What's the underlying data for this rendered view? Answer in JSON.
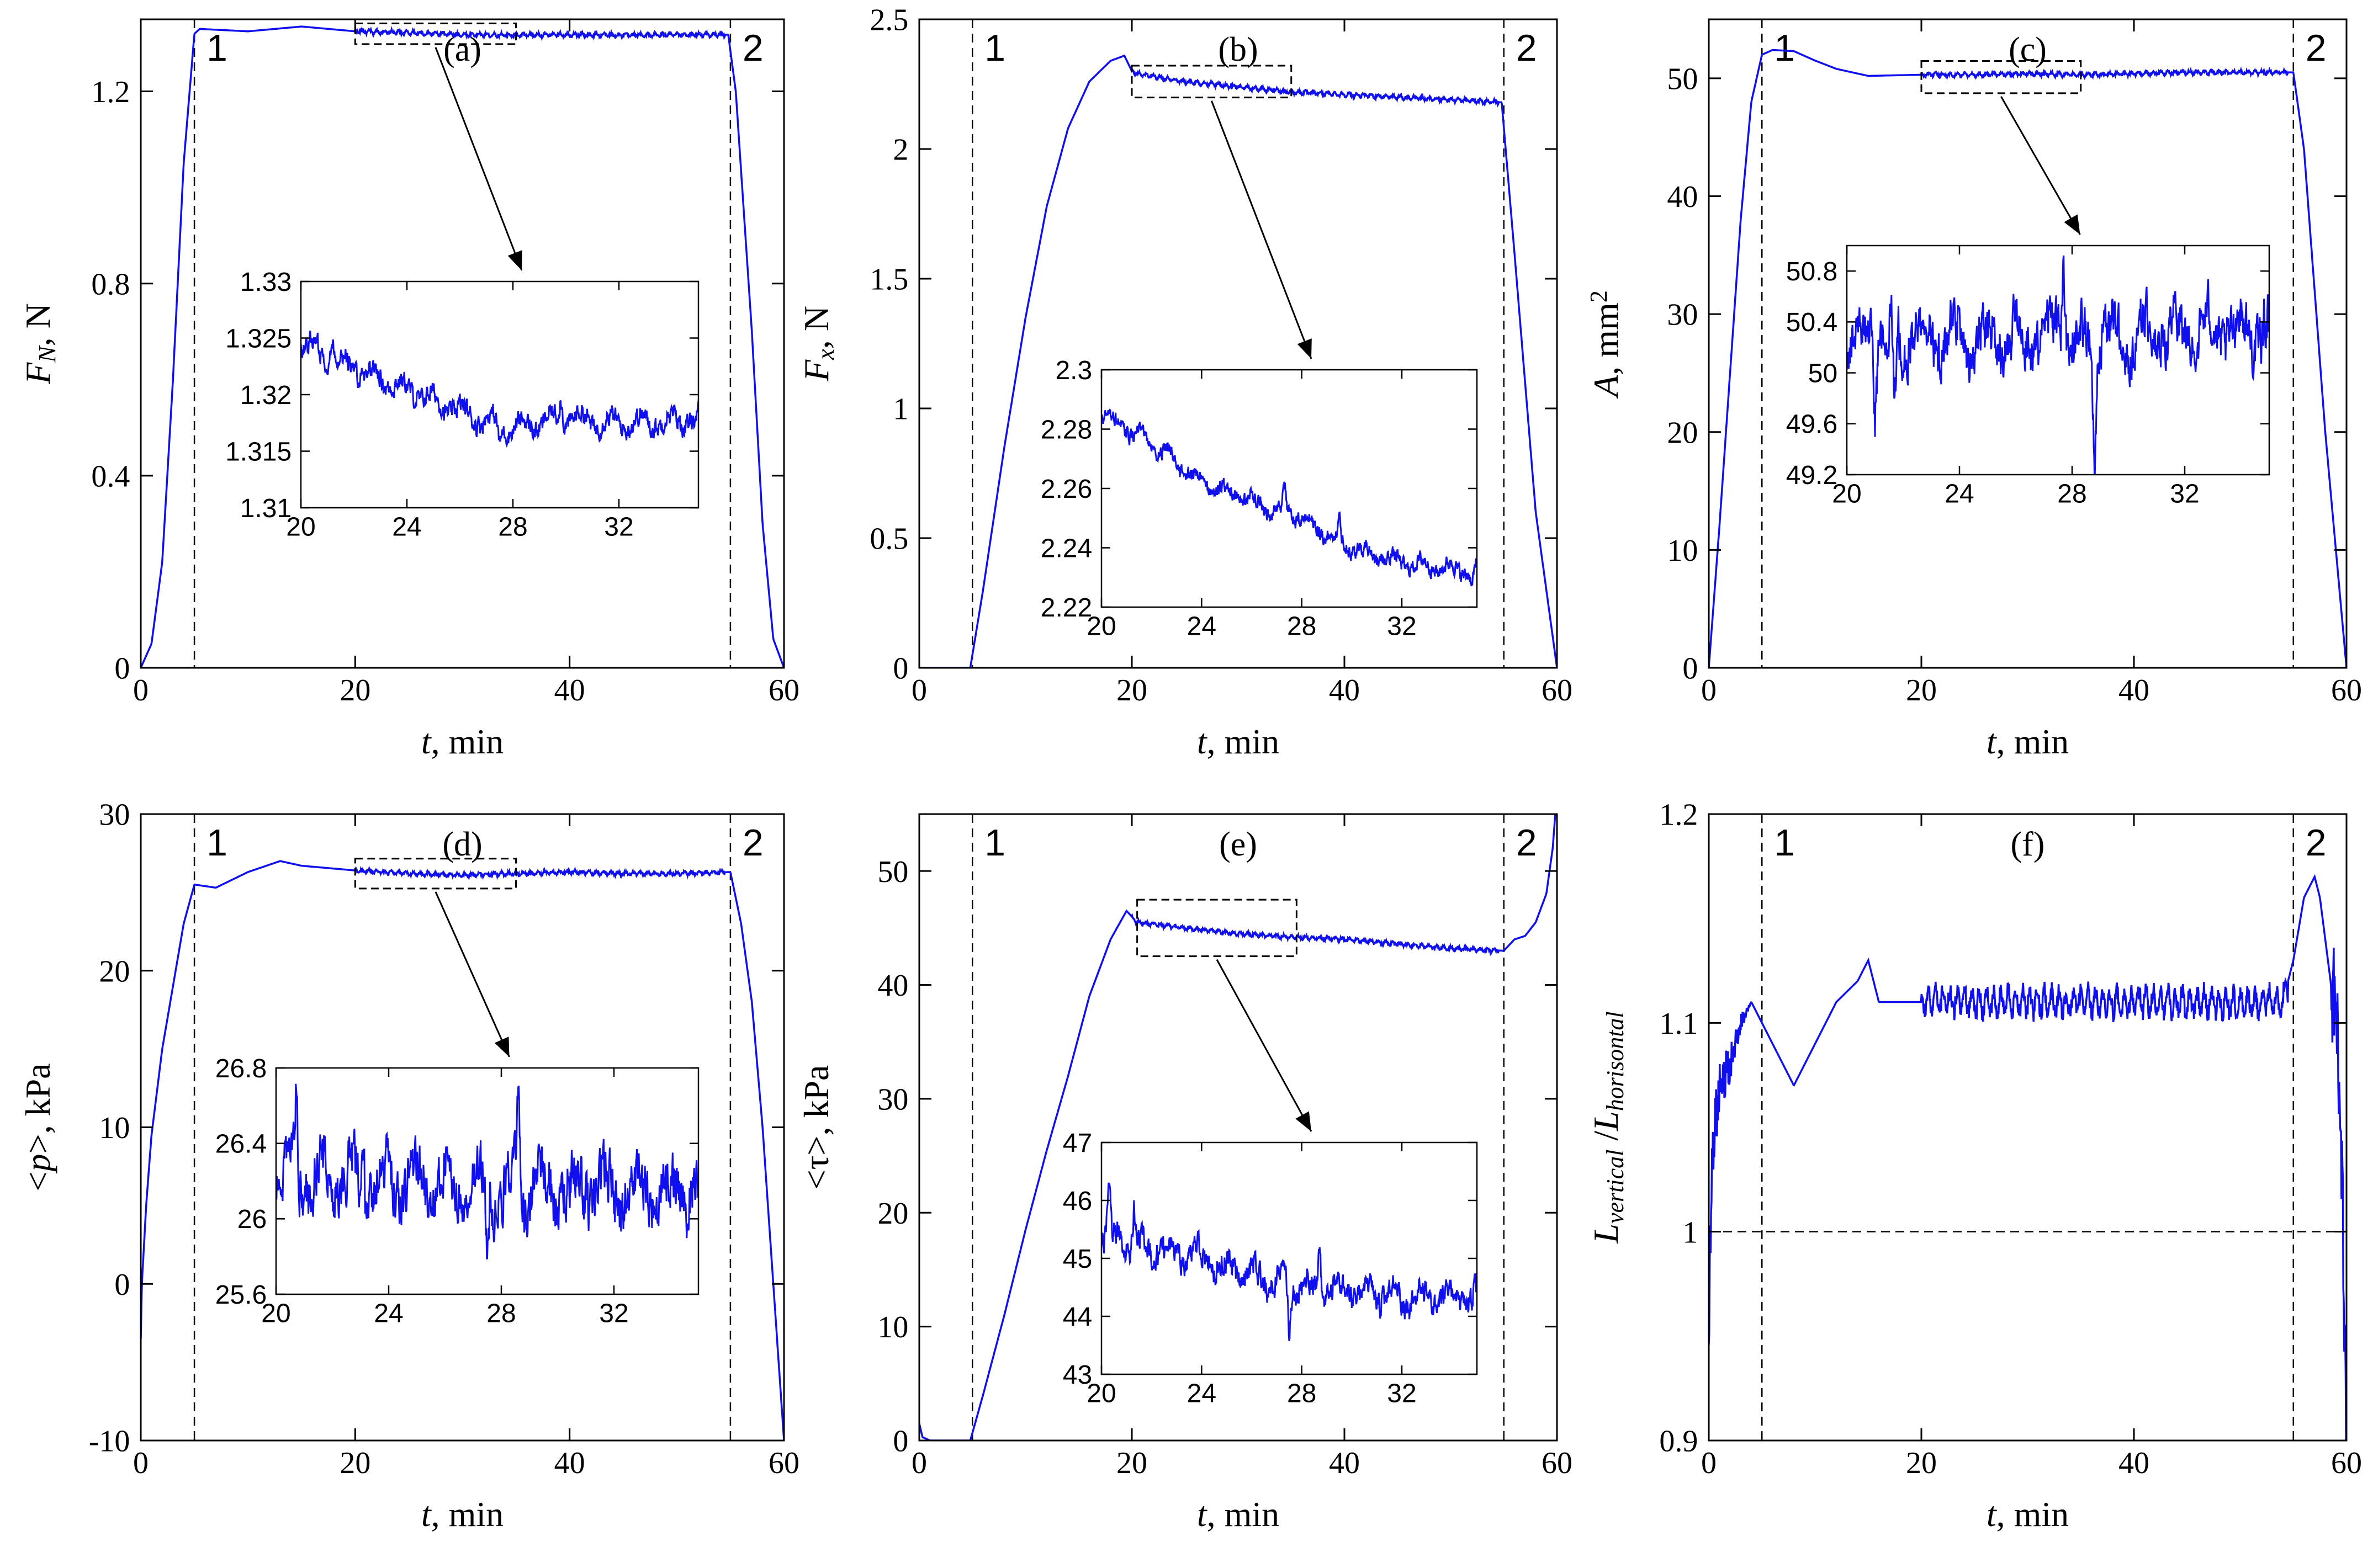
{
  "figure": {
    "line_color": "#1010ee",
    "axis_color": "#000000",
    "background": "#ffffff"
  },
  "chart_data": [
    {
      "type": "line",
      "panel_label": "(a)",
      "xlabel_var": "t",
      "xlabel_unit": ", min",
      "ylabel_parts": [
        [
          "F",
          "i"
        ],
        [
          "N",
          "sub"
        ],
        [
          ", N",
          ""
        ]
      ],
      "xlim": [
        0,
        60
      ],
      "ylim": [
        0,
        1.35
      ],
      "xticks": [
        0,
        20,
        40,
        60
      ],
      "xtick_labels": [
        "0",
        "20",
        "40",
        "60"
      ],
      "yticks": [
        0,
        0.4,
        0.8,
        1.2
      ],
      "ytick_labels": [
        "0",
        "0.4",
        "0.8",
        "1.2"
      ],
      "markers": [
        {
          "x": 5,
          "label": "1"
        },
        {
          "x": 55,
          "label": "2"
        }
      ],
      "hline": 0,
      "zoom_box": {
        "x": [
          20,
          35
        ],
        "y": [
          1.31,
          1.33
        ]
      },
      "series": [
        {
          "name": "F_N",
          "x": [
            0,
            1,
            2,
            3,
            4,
            5,
            5.5,
            10,
            15,
            20,
            25,
            30,
            35,
            40,
            45,
            50,
            54.8,
            55.5,
            57,
            58,
            59,
            60
          ],
          "y": [
            0,
            0.05,
            0.22,
            0.6,
            1.05,
            1.32,
            1.33,
            1.325,
            1.335,
            1.325,
            1.322,
            1.318,
            1.317,
            1.318,
            1.317,
            1.318,
            1.318,
            1.2,
            0.7,
            0.3,
            0.06,
            0
          ]
        }
      ],
      "inset": {
        "xlim": [
          20,
          35
        ],
        "ylim": [
          1.31,
          1.33
        ],
        "xticks": [
          20,
          24,
          28,
          32
        ],
        "xtick_labels": [
          "20",
          "24",
          "28",
          "32"
        ],
        "yticks": [
          1.31,
          1.315,
          1.32,
          1.325,
          1.33
        ],
        "ytick_labels": [
          "1.31",
          "1.315",
          "1.32",
          "1.325",
          "1.33"
        ],
        "trend": [
          [
            20,
            1.3245
          ],
          [
            22,
            1.3225
          ],
          [
            24,
            1.3205
          ],
          [
            26,
            1.3185
          ],
          [
            28,
            1.317
          ],
          [
            30,
            1.318
          ],
          [
            32,
            1.3175
          ],
          [
            35,
            1.3178
          ]
        ],
        "noise": 0.0012,
        "spikes": [
          [
            29.8,
            0.0022
          ],
          [
            27.5,
            -0.0018
          ],
          [
            21.2,
            0.0018
          ]
        ]
      }
    },
    {
      "type": "line",
      "panel_label": "(b)",
      "xlabel_var": "t",
      "xlabel_unit": ", min",
      "ylabel_parts": [
        [
          "F",
          "i"
        ],
        [
          "x",
          "sub"
        ],
        [
          ", N",
          ""
        ]
      ],
      "xlim": [
        0,
        60
      ],
      "ylim": [
        0,
        2.5
      ],
      "xticks": [
        0,
        20,
        40,
        60
      ],
      "xtick_labels": [
        "0",
        "20",
        "40",
        "60"
      ],
      "yticks": [
        0,
        0.5,
        1,
        1.5,
        2,
        2.5
      ],
      "ytick_labels": [
        "0",
        "0.5",
        "1",
        "1.5",
        "2",
        "2.5"
      ],
      "markers": [
        {
          "x": 5,
          "label": "1"
        },
        {
          "x": 55,
          "label": "2"
        }
      ],
      "zoom_box": {
        "x": [
          20,
          35
        ],
        "y": [
          2.22,
          2.3
        ]
      },
      "series": [
        {
          "name": "F_x",
          "x": [
            0,
            4.8,
            6,
            8,
            10,
            12,
            14,
            16,
            18,
            19.3,
            20,
            20.5,
            25,
            30,
            35,
            40,
            45,
            50,
            54.8,
            56,
            58,
            60
          ],
          "y": [
            0,
            0,
            0.3,
            0.85,
            1.35,
            1.78,
            2.08,
            2.26,
            2.34,
            2.36,
            2.3,
            2.29,
            2.26,
            2.24,
            2.22,
            2.21,
            2.2,
            2.19,
            2.18,
            1.6,
            0.6,
            0
          ]
        }
      ],
      "inset": {
        "xlim": [
          20,
          35
        ],
        "ylim": [
          2.22,
          2.3
        ],
        "xticks": [
          20,
          24,
          28,
          32
        ],
        "xtick_labels": [
          "20",
          "24",
          "28",
          "32"
        ],
        "yticks": [
          2.22,
          2.24,
          2.26,
          2.28,
          2.3
        ],
        "ytick_labels": [
          "2.22",
          "2.24",
          "2.26",
          "2.28",
          "2.3"
        ],
        "trend": [
          [
            20,
            2.285
          ],
          [
            22,
            2.275
          ],
          [
            24,
            2.262
          ],
          [
            26,
            2.256
          ],
          [
            28,
            2.25
          ],
          [
            30,
            2.24
          ],
          [
            32,
            2.235
          ],
          [
            35,
            2.232
          ]
        ],
        "noise": 0.0035,
        "spikes": [
          [
            27.3,
            0.01
          ],
          [
            29.5,
            0.006
          ],
          [
            34.8,
            -0.004
          ]
        ]
      }
    },
    {
      "type": "line",
      "panel_label": "(c)",
      "xlabel_var": "t",
      "xlabel_unit": ", min",
      "ylabel_parts": [
        [
          "A",
          "i"
        ],
        [
          ", mm",
          ""
        ],
        [
          "2",
          "sup"
        ]
      ],
      "xlim": [
        0,
        60
      ],
      "ylim": [
        0,
        55
      ],
      "xticks": [
        0,
        20,
        40,
        60
      ],
      "xtick_labels": [
        "0",
        "20",
        "40",
        "60"
      ],
      "yticks": [
        0,
        10,
        20,
        30,
        40,
        50
      ],
      "ytick_labels": [
        "0",
        "10",
        "20",
        "30",
        "40",
        "50"
      ],
      "markers": [
        {
          "x": 5,
          "label": "1"
        },
        {
          "x": 55,
          "label": "2"
        }
      ],
      "zoom_box": {
        "x": [
          20,
          35
        ],
        "y": [
          49.2,
          51
        ]
      },
      "series": [
        {
          "name": "A",
          "x": [
            0,
            1,
            2,
            3,
            4,
            5,
            6,
            8,
            10,
            12,
            15,
            20,
            25,
            30,
            35,
            40,
            45,
            50,
            55,
            56,
            58,
            60
          ],
          "y": [
            0,
            12,
            25,
            38,
            48,
            52,
            52.4,
            52.3,
            51.5,
            50.8,
            50.2,
            50.3,
            50.3,
            50.4,
            50.3,
            50.4,
            50.5,
            50.5,
            50.5,
            44,
            20,
            0
          ]
        }
      ],
      "inset": {
        "xlim": [
          20,
          35
        ],
        "ylim": [
          49.2,
          51
        ],
        "xticks": [
          20,
          24,
          28,
          32
        ],
        "xtick_labels": [
          "20",
          "24",
          "28",
          "32"
        ],
        "yticks": [
          49.2,
          49.6,
          50,
          50.4,
          50.8
        ],
        "ytick_labels": [
          "49.2",
          "49.6",
          "50",
          "50.4",
          "50.8"
        ],
        "trend": [
          [
            20,
            50.3
          ],
          [
            25,
            50.25
          ],
          [
            30,
            50.3
          ],
          [
            35,
            50.35
          ]
        ],
        "noise": 0.28,
        "spikes": [
          [
            21.7,
            -0.8
          ],
          [
            27.7,
            0.6
          ],
          [
            28.8,
            -0.8
          ],
          [
            21.0,
            -0.5
          ]
        ]
      }
    },
    {
      "type": "line",
      "panel_label": "(d)",
      "xlabel_var": "t",
      "xlabel_unit": ", min",
      "ylabel_parts": [
        [
          "<",
          ""
        ],
        [
          "p",
          "i"
        ],
        [
          ">, kPa",
          ""
        ]
      ],
      "xlim": [
        0,
        60
      ],
      "ylim": [
        -10,
        30
      ],
      "xticks": [
        0,
        20,
        40,
        60
      ],
      "xtick_labels": [
        "0",
        "20",
        "40",
        "60"
      ],
      "yticks": [
        -10,
        0,
        10,
        20,
        30
      ],
      "ytick_labels": [
        "-10",
        "0",
        "10",
        "20",
        "30"
      ],
      "markers": [
        {
          "x": 5,
          "label": "1"
        },
        {
          "x": 55,
          "label": "2"
        }
      ],
      "zoom_box": {
        "x": [
          20,
          35
        ],
        "y": [
          25.6,
          26.8
        ]
      },
      "series": [
        {
          "name": "p",
          "x": [
            0,
            0.1,
            0.5,
            1,
            2,
            3,
            4,
            5,
            7,
            10,
            13,
            15,
            20,
            25,
            30,
            35,
            40,
            45,
            50,
            55,
            56,
            57,
            58,
            59,
            59.5,
            60
          ],
          "y": [
            -3.5,
            0,
            5,
            9.5,
            15,
            19,
            23,
            25.5,
            25.3,
            26.3,
            27,
            26.7,
            26.4,
            26.2,
            26.1,
            26.2,
            26.3,
            26.2,
            26.2,
            26.3,
            23,
            18,
            10,
            0,
            -5,
            -10
          ]
        }
      ],
      "inset": {
        "xlim": [
          20,
          35
        ],
        "ylim": [
          25.6,
          26.8
        ],
        "xticks": [
          20,
          24,
          28,
          32
        ],
        "xtick_labels": [
          "20",
          "24",
          "28",
          "32"
        ],
        "yticks": [
          25.6,
          26,
          26.4,
          26.8
        ],
        "ytick_labels": [
          "25.6",
          "26",
          "26.4",
          "26.8"
        ],
        "trend": [
          [
            20,
            26.25
          ],
          [
            25,
            26.2
          ],
          [
            30,
            26.15
          ],
          [
            35,
            26.15
          ]
        ],
        "noise": 0.2,
        "spikes": [
          [
            28.6,
            0.5
          ],
          [
            27.5,
            -0.4
          ],
          [
            20.7,
            0.4
          ]
        ]
      }
    },
    {
      "type": "line",
      "panel_label": "(e)",
      "xlabel_var": "t",
      "xlabel_unit": ", min",
      "ylabel_parts": [
        [
          "<τ>, kPa",
          ""
        ]
      ],
      "xlim": [
        0,
        60
      ],
      "ylim": [
        0,
        55
      ],
      "xticks": [
        0,
        20,
        40,
        60
      ],
      "xtick_labels": [
        "0",
        "20",
        "40",
        "60"
      ],
      "yticks": [
        0,
        10,
        20,
        30,
        40,
        50
      ],
      "ytick_labels": [
        "0",
        "10",
        "20",
        "30",
        "40",
        "50"
      ],
      "markers": [
        {
          "x": 5,
          "label": "1"
        },
        {
          "x": 55,
          "label": "2"
        }
      ],
      "zoom_box": {
        "x": [
          20.5,
          35.5
        ],
        "y": [
          43,
          47
        ]
      },
      "series": [
        {
          "name": "tau",
          "x": [
            0,
            0.3,
            1,
            4.8,
            6,
            8,
            10,
            12,
            14,
            16,
            18,
            19.5,
            20.5,
            25,
            30,
            35,
            40,
            45,
            50,
            55,
            56,
            57,
            58,
            59,
            59.6,
            60
          ],
          "y": [
            1.5,
            0.3,
            0,
            0,
            4,
            11,
            18.5,
            25.5,
            32,
            39,
            44,
            46.5,
            45.5,
            45,
            44.5,
            44.2,
            44,
            43.6,
            43.2,
            43,
            44,
            44.3,
            45.5,
            48,
            52,
            57
          ]
        }
      ],
      "inset": {
        "xlim": [
          20,
          35
        ],
        "ylim": [
          43,
          47
        ],
        "xticks": [
          20,
          24,
          28,
          32
        ],
        "xtick_labels": [
          "20",
          "24",
          "28",
          "32"
        ],
        "yticks": [
          43,
          44,
          45,
          46,
          47
        ],
        "ytick_labels": [
          "43",
          "44",
          "45",
          "46",
          "47"
        ],
        "trend": [
          [
            20,
            45.4
          ],
          [
            22,
            45.2
          ],
          [
            24,
            45.0
          ],
          [
            26,
            44.7
          ],
          [
            28,
            44.5
          ],
          [
            30,
            44.4
          ],
          [
            32,
            44.3
          ],
          [
            35,
            44.3
          ]
        ],
        "noise": 0.3,
        "spikes": [
          [
            27.5,
            -0.8
          ],
          [
            28.7,
            0.8
          ],
          [
            21.3,
            0.7
          ],
          [
            20.3,
            0.8
          ]
        ]
      }
    },
    {
      "type": "line",
      "panel_label": "(f)",
      "xlabel_var": "t",
      "xlabel_unit": ", min",
      "ylabel_parts": [
        [
          "L",
          "i"
        ],
        [
          "vertical",
          "sub"
        ],
        [
          " /",
          ""
        ],
        [
          "L",
          "i"
        ],
        [
          "horisontal",
          "sub"
        ]
      ],
      "xlim": [
        0,
        60
      ],
      "ylim": [
        0.9,
        1.2
      ],
      "xticks": [
        0,
        20,
        40,
        60
      ],
      "xtick_labels": [
        "0",
        "20",
        "40",
        "60"
      ],
      "yticks": [
        0.9,
        1,
        1.1,
        1.2
      ],
      "ytick_labels": [
        "0.9",
        "1",
        "1.1",
        "1.2"
      ],
      "markers": [
        {
          "x": 5,
          "label": "1"
        },
        {
          "x": 55,
          "label": "2"
        }
      ],
      "hline": 1,
      "series": [
        {
          "name": "ratio",
          "x": [
            0,
            0.3,
            1,
            2,
            3,
            4,
            5,
            6,
            7,
            8,
            10,
            12,
            14,
            15,
            16,
            20,
            25,
            30,
            35,
            40,
            45,
            50,
            54,
            55,
            56,
            57,
            57.5,
            58,
            59,
            59.5,
            60
          ],
          "y": [
            0.95,
            1.04,
            1.07,
            1.08,
            1.1,
            1.11,
            1.1,
            1.09,
            1.08,
            1.07,
            1.09,
            1.11,
            1.12,
            1.13,
            1.11,
            1.11,
            1.11,
            1.11,
            1.11,
            1.11,
            1.11,
            1.11,
            1.11,
            1.13,
            1.16,
            1.17,
            1.16,
            1.14,
            1.1,
            1.05,
            0.9
          ]
        }
      ]
    }
  ]
}
